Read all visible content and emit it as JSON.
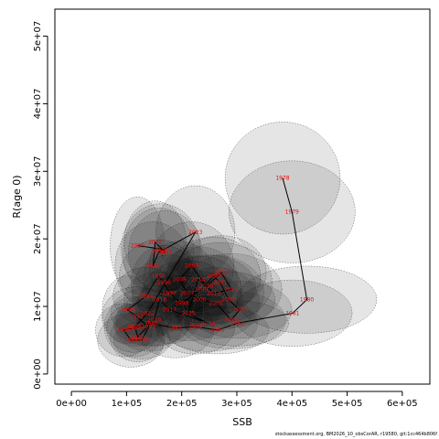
{
  "chart_data": {
    "type": "scatter",
    "xlabel": "SSB",
    "ylabel": "R(age 0)",
    "xlim": [
      -30000,
      650000
    ],
    "ylim": [
      -1500000,
      54000000
    ],
    "x_ticks": [
      0,
      100000,
      200000,
      300000,
      400000,
      500000,
      600000
    ],
    "x_tick_labels": [
      "0e+00",
      "1e+05",
      "2e+05",
      "3e+05",
      "4e+05",
      "5e+05",
      "6e+05"
    ],
    "y_ticks": [
      0,
      10000000,
      20000000,
      30000000,
      40000000,
      50000000
    ],
    "y_tick_labels": [
      "0e+00",
      "1e+07",
      "2e+07",
      "3e+07",
      "4e+07",
      "5e+07"
    ],
    "connected_line": true,
    "points": [
      {
        "year": "1978",
        "ssb": 383000,
        "r": 29000000
      },
      {
        "year": "1979",
        "ssb": 400000,
        "r": 24000000
      },
      {
        "year": "1980",
        "ssb": 427000,
        "r": 11000000
      },
      {
        "year": "1981",
        "ssb": 401000,
        "r": 9000000
      },
      {
        "year": "1982",
        "ssb": 300000,
        "r": 7500000
      },
      {
        "year": "1983",
        "ssb": 265000,
        "r": 6500000
      },
      {
        "year": "1984",
        "ssb": 225000,
        "r": 7000000
      },
      {
        "year": "1985",
        "ssb": 188000,
        "r": 6800000
      },
      {
        "year": "1986",
        "ssb": 145000,
        "r": 7500000
      },
      {
        "year": "1987",
        "ssb": 112000,
        "r": 6800000
      },
      {
        "year": "1988",
        "ssb": 95000,
        "r": 6500000
      },
      {
        "year": "1989",
        "ssb": 108000,
        "r": 5000000
      },
      {
        "year": "1990",
        "ssb": 128000,
        "r": 5000000
      },
      {
        "year": "1991",
        "ssb": 140000,
        "r": 7000000
      },
      {
        "year": "1992",
        "ssb": 118000,
        "r": 8500000
      },
      {
        "year": "1993",
        "ssb": 102000,
        "r": 9500000
      },
      {
        "year": "1994",
        "ssb": 135000,
        "r": 11500000
      },
      {
        "year": "1995",
        "ssb": 158000,
        "r": 14500000
      },
      {
        "year": "1996",
        "ssb": 168000,
        "r": 13500000
      },
      {
        "year": "1997",
        "ssb": 178000,
        "r": 12000000
      },
      {
        "year": "1998",
        "ssb": 200000,
        "r": 10500000
      },
      {
        "year": "1999",
        "ssb": 235000,
        "r": 12500000
      },
      {
        "year": "2000",
        "ssb": 258000,
        "r": 14500000
      },
      {
        "year": "2001",
        "ssb": 270000,
        "r": 13500000
      },
      {
        "year": "2002",
        "ssb": 285000,
        "r": 11000000
      },
      {
        "year": "2003",
        "ssb": 305000,
        "r": 9500000
      },
      {
        "year": "2004",
        "ssb": 290000,
        "r": 8000000
      },
      {
        "year": "2005",
        "ssb": 262000,
        "r": 10500000
      },
      {
        "year": "2006",
        "ssb": 232000,
        "r": 11000000
      },
      {
        "year": "2007",
        "ssb": 210000,
        "r": 12000000
      },
      {
        "year": "2008",
        "ssb": 196000,
        "r": 14000000
      },
      {
        "year": "2009",
        "ssb": 218000,
        "r": 16000000
      },
      {
        "year": "2010",
        "ssb": 245000,
        "r": 13000000
      },
      {
        "year": "2011",
        "ssb": 272000,
        "r": 15000000
      },
      {
        "year": "2012",
        "ssb": 290000,
        "r": 12500000
      },
      {
        "year": "2013",
        "ssb": 258000,
        "r": 12000000
      },
      {
        "year": "2014",
        "ssb": 230000,
        "r": 14000000
      },
      {
        "year": "2015",
        "ssb": 212000,
        "r": 9000000
      },
      {
        "year": "2016",
        "ssb": 248000,
        "r": 7500000
      },
      {
        "year": "2017",
        "ssb": 178000,
        "r": 9500000
      },
      {
        "year": "2018",
        "ssb": 160000,
        "r": 11000000
      },
      {
        "year": "2019",
        "ssb": 150000,
        "r": 8000000
      },
      {
        "year": "2020",
        "ssb": 120000,
        "r": 5500000
      },
      {
        "year": "2021",
        "ssb": 115000,
        "r": 7000000
      },
      {
        "year": "2022",
        "ssb": 138000,
        "r": 9000000
      },
      {
        "year": "2023",
        "ssb": 225000,
        "r": 21000000
      },
      {
        "year": "2024",
        "ssb": 158000,
        "r": 18000000
      },
      {
        "year": "2025",
        "ssb": 148000,
        "r": 16000000
      },
      {
        "year": "2026",
        "ssb": 152000,
        "r": 19500000
      },
      {
        "year": "2027",
        "ssb": 170000,
        "r": 18000000
      },
      {
        "year": "2028",
        "ssb": 162000,
        "r": 18500000
      },
      {
        "year": "2029",
        "ssb": 120000,
        "r": 19000000
      }
    ]
  },
  "credit": "stockassessment.org, BM2026_10_obsCorAR, r19580, git:1cc464b806f"
}
